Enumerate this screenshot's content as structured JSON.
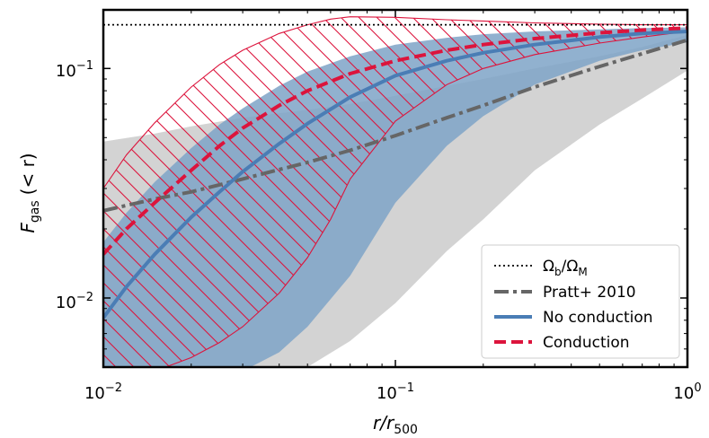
{
  "chart_data": {
    "type": "line",
    "xscale": "log",
    "yscale": "log",
    "xlim": [
      0.01,
      1.0
    ],
    "ylim": [
      0.005,
      0.18
    ],
    "x_ticks": [
      {
        "value": 0.01,
        "base": "10",
        "exp": "−2"
      },
      {
        "value": 0.1,
        "base": "10",
        "exp": "−1"
      },
      {
        "value": 1.0,
        "base": "10",
        "exp": "0"
      }
    ],
    "y_ticks": [
      {
        "value": 0.01,
        "base": "10",
        "exp": "−2"
      },
      {
        "value": 0.1,
        "base": "10",
        "exp": "−1"
      }
    ],
    "xlabel": {
      "main": "r/r",
      "sub": "500"
    },
    "ylabel": {
      "main": "F",
      "sub": "gas",
      "suffix": "(< r)"
    },
    "legend": {
      "position": "lower-right",
      "entries": [
        {
          "key": "omega",
          "label_a": "Ω",
          "sub_a": "b",
          "slash": "/Ω",
          "sub_b": "M",
          "style": "dotted",
          "color": "#000000"
        },
        {
          "key": "pratt",
          "label": "Pratt+ 2010",
          "style": "dashdot",
          "color": "#666666"
        },
        {
          "key": "noconduction",
          "label": "No conduction",
          "style": "solid",
          "color": "#4a7db5"
        },
        {
          "key": "conduction",
          "label": "Conduction",
          "style": "dashed",
          "color": "#dc143c"
        }
      ]
    },
    "series": [
      {
        "name": "Omega_b/Omega_M",
        "style": "dotted",
        "color": "#000000",
        "x": [
          0.01,
          1.0
        ],
        "y": [
          0.155,
          0.155
        ]
      },
      {
        "name": "Pratt+ 2010",
        "style": "dashdot",
        "color": "#666666",
        "x": [
          0.01,
          0.015,
          0.02,
          0.03,
          0.05,
          0.07,
          0.1,
          0.15,
          0.2,
          0.3,
          0.5,
          0.7,
          1.0
        ],
        "y": [
          0.024,
          0.027,
          0.029,
          0.033,
          0.039,
          0.044,
          0.051,
          0.061,
          0.069,
          0.083,
          0.102,
          0.116,
          0.133
        ]
      },
      {
        "name": "No conduction",
        "style": "solid",
        "color": "#4a7db5",
        "x": [
          0.01,
          0.012,
          0.015,
          0.02,
          0.025,
          0.03,
          0.04,
          0.05,
          0.07,
          0.1,
          0.15,
          0.2,
          0.3,
          0.5,
          0.7,
          1.0
        ],
        "y": [
          0.0082,
          0.0112,
          0.0155,
          0.0225,
          0.029,
          0.0355,
          0.047,
          0.0575,
          0.075,
          0.093,
          0.108,
          0.117,
          0.127,
          0.137,
          0.142,
          0.145
        ]
      },
      {
        "name": "Conduction",
        "style": "dashed",
        "color": "#dc143c",
        "x": [
          0.01,
          0.012,
          0.015,
          0.02,
          0.025,
          0.03,
          0.04,
          0.05,
          0.07,
          0.1,
          0.15,
          0.2,
          0.3,
          0.5,
          0.7,
          1.0
        ],
        "y": [
          0.0155,
          0.02,
          0.026,
          0.036,
          0.046,
          0.055,
          0.069,
          0.08,
          0.095,
          0.108,
          0.12,
          0.127,
          0.135,
          0.143,
          0.147,
          0.15
        ]
      }
    ],
    "bands": [
      {
        "name": "Pratt+ 2010 scatter",
        "fill": "#d3d3d3",
        "x": [
          0.01,
          0.015,
          0.02,
          0.03,
          0.05,
          0.07,
          0.1,
          0.15,
          0.2,
          0.3,
          0.5,
          0.7,
          1.0
        ],
        "upper": [
          0.048,
          0.052,
          0.056,
          0.061,
          0.066,
          0.07,
          0.076,
          0.084,
          0.09,
          0.1,
          0.113,
          0.124,
          0.14
        ],
        "lower": [
          0.002,
          0.003,
          0.0035,
          0.0042,
          0.005,
          0.0065,
          0.0095,
          0.016,
          0.022,
          0.036,
          0.057,
          0.074,
          0.098
        ]
      },
      {
        "name": "No conduction scatter",
        "fill": "#7ea3c7",
        "opacity": 0.85,
        "x": [
          0.01,
          0.012,
          0.015,
          0.02,
          0.025,
          0.03,
          0.04,
          0.05,
          0.07,
          0.1,
          0.15,
          0.2,
          0.3,
          0.5,
          0.7,
          1.0
        ],
        "upper": [
          0.0175,
          0.0235,
          0.032,
          0.045,
          0.057,
          0.067,
          0.084,
          0.097,
          0.113,
          0.127,
          0.136,
          0.141,
          0.145,
          0.148,
          0.15,
          0.151
        ],
        "lower": [
          0.003,
          0.0032,
          0.0034,
          0.0038,
          0.0043,
          0.0048,
          0.0058,
          0.0075,
          0.0125,
          0.026,
          0.046,
          0.062,
          0.085,
          0.108,
          0.12,
          0.13
        ]
      },
      {
        "name": "Conduction scatter",
        "stroke": "#dc143c",
        "hatch": true,
        "x": [
          0.01,
          0.012,
          0.015,
          0.02,
          0.025,
          0.03,
          0.04,
          0.05,
          0.06,
          0.07,
          0.1,
          0.15,
          0.2,
          0.3,
          0.5,
          0.7,
          1.0
        ],
        "upper": [
          0.03,
          0.042,
          0.058,
          0.083,
          0.104,
          0.12,
          0.142,
          0.155,
          0.164,
          0.168,
          0.167,
          0.163,
          0.161,
          0.158,
          0.156,
          0.155,
          0.155
        ],
        "lower": [
          0.004,
          0.0043,
          0.0048,
          0.0055,
          0.0064,
          0.0075,
          0.0105,
          0.015,
          0.022,
          0.033,
          0.059,
          0.085,
          0.1,
          0.115,
          0.129,
          0.137,
          0.145
        ]
      }
    ]
  }
}
